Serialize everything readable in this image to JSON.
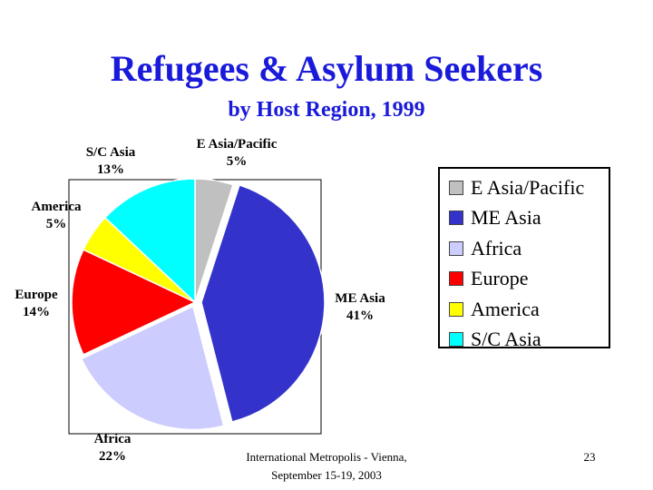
{
  "slide": {
    "footer_line1": "International Metropolis - Vienna,",
    "footer_line2": "September 15-19, 2003",
    "page_number": "23"
  },
  "chart_data": {
    "type": "pie",
    "title": "Refugees & Asylum Seekers",
    "subtitle": "by Host Region, 1999",
    "legend_position": "right",
    "slices": [
      {
        "name": "E Asia/Pacific",
        "value": 5,
        "label_line1": "E Asia/Pacific",
        "label_line2": "5%",
        "color": "#c0c0c0"
      },
      {
        "name": "ME Asia",
        "value": 41,
        "label_line1": "ME Asia",
        "label_line2": "41%",
        "color": "#3333cc"
      },
      {
        "name": "Africa",
        "value": 22,
        "label_line1": "Africa",
        "label_line2": "22%",
        "color": "#ccccff"
      },
      {
        "name": "Europe",
        "value": 14,
        "label_line1": "Europe",
        "label_line2": "14%",
        "color": "#ff0000"
      },
      {
        "name": "America",
        "value": 5,
        "label_line1": "America",
        "label_line2": "5%",
        "color": "#ffff00"
      },
      {
        "name": "S/C Asia",
        "value": 13,
        "label_line1": "S/C Asia",
        "label_line2": "13%",
        "color": "#00ffff"
      }
    ]
  }
}
